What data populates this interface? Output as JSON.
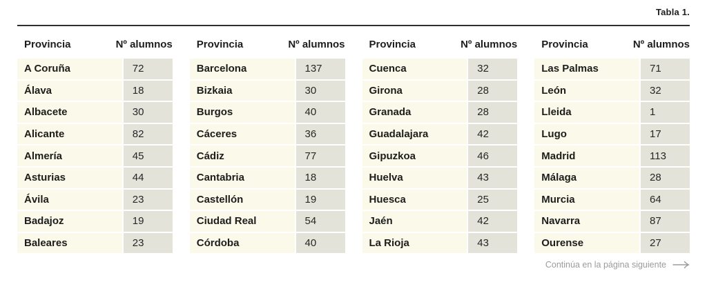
{
  "caption": "Tabla 1.",
  "table": {
    "column_headers": {
      "province": "Provincia",
      "count": "Nº alumnos"
    },
    "groups": [
      {
        "rows": [
          {
            "province": "A Coruña",
            "count": "72"
          },
          {
            "province": "Álava",
            "count": "18"
          },
          {
            "province": "Albacete",
            "count": "30"
          },
          {
            "province": "Alicante",
            "count": "82"
          },
          {
            "province": "Almería",
            "count": "45"
          },
          {
            "province": "Asturias",
            "count": "44"
          },
          {
            "province": "Ávila",
            "count": "23"
          },
          {
            "province": "Badajoz",
            "count": "19"
          },
          {
            "province": "Baleares",
            "count": "23"
          }
        ]
      },
      {
        "rows": [
          {
            "province": "Barcelona",
            "count": "137"
          },
          {
            "province": "Bizkaia",
            "count": "30"
          },
          {
            "province": "Burgos",
            "count": "40"
          },
          {
            "province": "Cáceres",
            "count": "36"
          },
          {
            "province": "Cádiz",
            "count": "77"
          },
          {
            "province": "Cantabria",
            "count": "18"
          },
          {
            "province": "Castellón",
            "count": "19"
          },
          {
            "province": "Ciudad Real",
            "count": "54"
          },
          {
            "province": "Córdoba",
            "count": "40"
          }
        ]
      },
      {
        "rows": [
          {
            "province": "Cuenca",
            "count": "32"
          },
          {
            "province": "Girona",
            "count": "28"
          },
          {
            "province": "Granada",
            "count": "28"
          },
          {
            "province": "Guadalajara",
            "count": "42"
          },
          {
            "province": "Gipuzkoa",
            "count": "46"
          },
          {
            "province": "Huelva",
            "count": "43"
          },
          {
            "province": "Huesca",
            "count": "25"
          },
          {
            "province": "Jaén",
            "count": "42"
          },
          {
            "province": "La Rioja",
            "count": "43"
          }
        ]
      },
      {
        "rows": [
          {
            "province": "Las Palmas",
            "count": "71"
          },
          {
            "province": "León",
            "count": "32"
          },
          {
            "province": "Lleida",
            "count": "1"
          },
          {
            "province": "Lugo",
            "count": "17"
          },
          {
            "province": "Madrid",
            "count": "113"
          },
          {
            "province": "Málaga",
            "count": "28"
          },
          {
            "province": "Murcia",
            "count": "64"
          },
          {
            "province": "Navarra",
            "count": "87"
          },
          {
            "province": "Ourense",
            "count": "27"
          }
        ]
      }
    ]
  },
  "footer": {
    "continuation_label": "Continúa en la página siguiente",
    "arrow_icon": "long-right-arrow"
  },
  "colors": {
    "province_cell_bg": "#fbf9e9",
    "count_cell_bg": "#e4e3da",
    "top_rule": "#2e2e2c",
    "text": "#1d1d1b",
    "footer_text": "#9b9b9b",
    "page_bg": "#ffffff"
  }
}
